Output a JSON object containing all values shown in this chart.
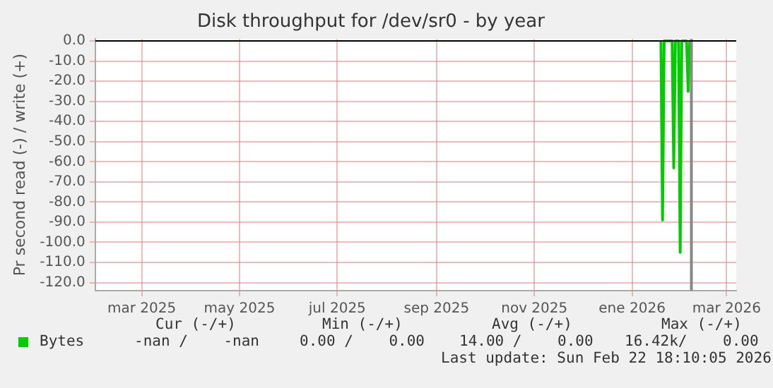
{
  "chart_data": {
    "type": "line",
    "title": "Disk throughput for /dev/sr0 - by year",
    "ylabel": "Pr second read (-) / write (+)",
    "x": [
      "2026-01-19",
      "2026-01-20",
      "2026-01-21",
      "2026-01-26",
      "2026-01-27",
      "2026-01-28",
      "2026-01-30",
      "2026-01-31",
      "2026-02-01",
      "2026-02-04",
      "2026-02-05",
      "2026-02-06"
    ],
    "series": [
      {
        "name": "Bytes",
        "color": "#00cc00",
        "values": [
          0,
          -89,
          0,
          0,
          -63,
          0,
          0,
          -105,
          0,
          0,
          -25,
          0
        ]
      }
    ],
    "xlim": [
      "2025-01-31",
      "2026-03-07"
    ],
    "xticks": [
      {
        "value": "2025-03-01",
        "label": "mar 2025"
      },
      {
        "value": "2025-05-01",
        "label": "may 2025"
      },
      {
        "value": "2025-07-01",
        "label": "jul 2025"
      },
      {
        "value": "2025-09-01",
        "label": "sep 2025"
      },
      {
        "value": "2025-11-01",
        "label": "nov 2025"
      },
      {
        "value": "2026-01-01",
        "label": "ene 2026"
      },
      {
        "value": "2026-03-01",
        "label": "mar 2026"
      }
    ],
    "ylim": [
      -124,
      1
    ],
    "yticks": [
      {
        "value": 0,
        "label": "0.0"
      },
      {
        "value": -10,
        "label": "-10.0"
      },
      {
        "value": -20,
        "label": "-20.0"
      },
      {
        "value": -30,
        "label": "-30.0"
      },
      {
        "value": -40,
        "label": "-40.0"
      },
      {
        "value": -50,
        "label": "-50.0"
      },
      {
        "value": -60,
        "label": "-60.0"
      },
      {
        "value": -70,
        "label": "-70.0"
      },
      {
        "value": -80,
        "label": "-80.0"
      },
      {
        "value": -90,
        "label": "-90.0"
      },
      {
        "value": -100,
        "label": "-100.0"
      },
      {
        "value": -110,
        "label": "-110.0"
      },
      {
        "value": -120,
        "label": "-120.0"
      }
    ],
    "ref_lines": [
      {
        "axis": "x",
        "value": "2026-02-07",
        "label": null,
        "color": "#888888"
      }
    ],
    "grid": true,
    "legend": "bottom",
    "marker": "none",
    "line_style": "solid",
    "annotations": [
      "Cur (-/+)",
      "Min (-/+)",
      "Avg (-/+)",
      "Max (-/+)",
      "-nan /    -nan",
      "0.00 /    0.00",
      "14.00 /    0.00",
      "16.42k/    0.00",
      "Last update: Sun Feb 22 18:10:05 2026"
    ]
  }
}
